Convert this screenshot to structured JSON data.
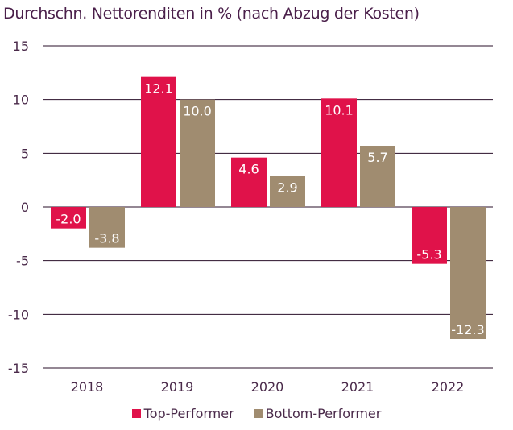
{
  "chart_data": {
    "type": "bar",
    "title": "Durchschn. Nettorenditen in % (nach Abzug der Kosten)",
    "categories": [
      "2018",
      "2019",
      "2020",
      "2021",
      "2022"
    ],
    "series": [
      {
        "name": "Top-Performer",
        "values": [
          -2.0,
          12.1,
          4.6,
          10.1,
          -5.3
        ],
        "color": "#e0124a"
      },
      {
        "name": "Bottom-Performer",
        "values": [
          -3.8,
          10.0,
          2.9,
          5.7,
          -12.3
        ],
        "color": "#a08c70"
      }
    ],
    "ylim": [
      -15,
      15
    ],
    "yticks": [
      15,
      10,
      5,
      0,
      -5,
      -10,
      -15
    ],
    "grid": true,
    "legend": "bottom",
    "xlabel": "",
    "ylabel": ""
  }
}
